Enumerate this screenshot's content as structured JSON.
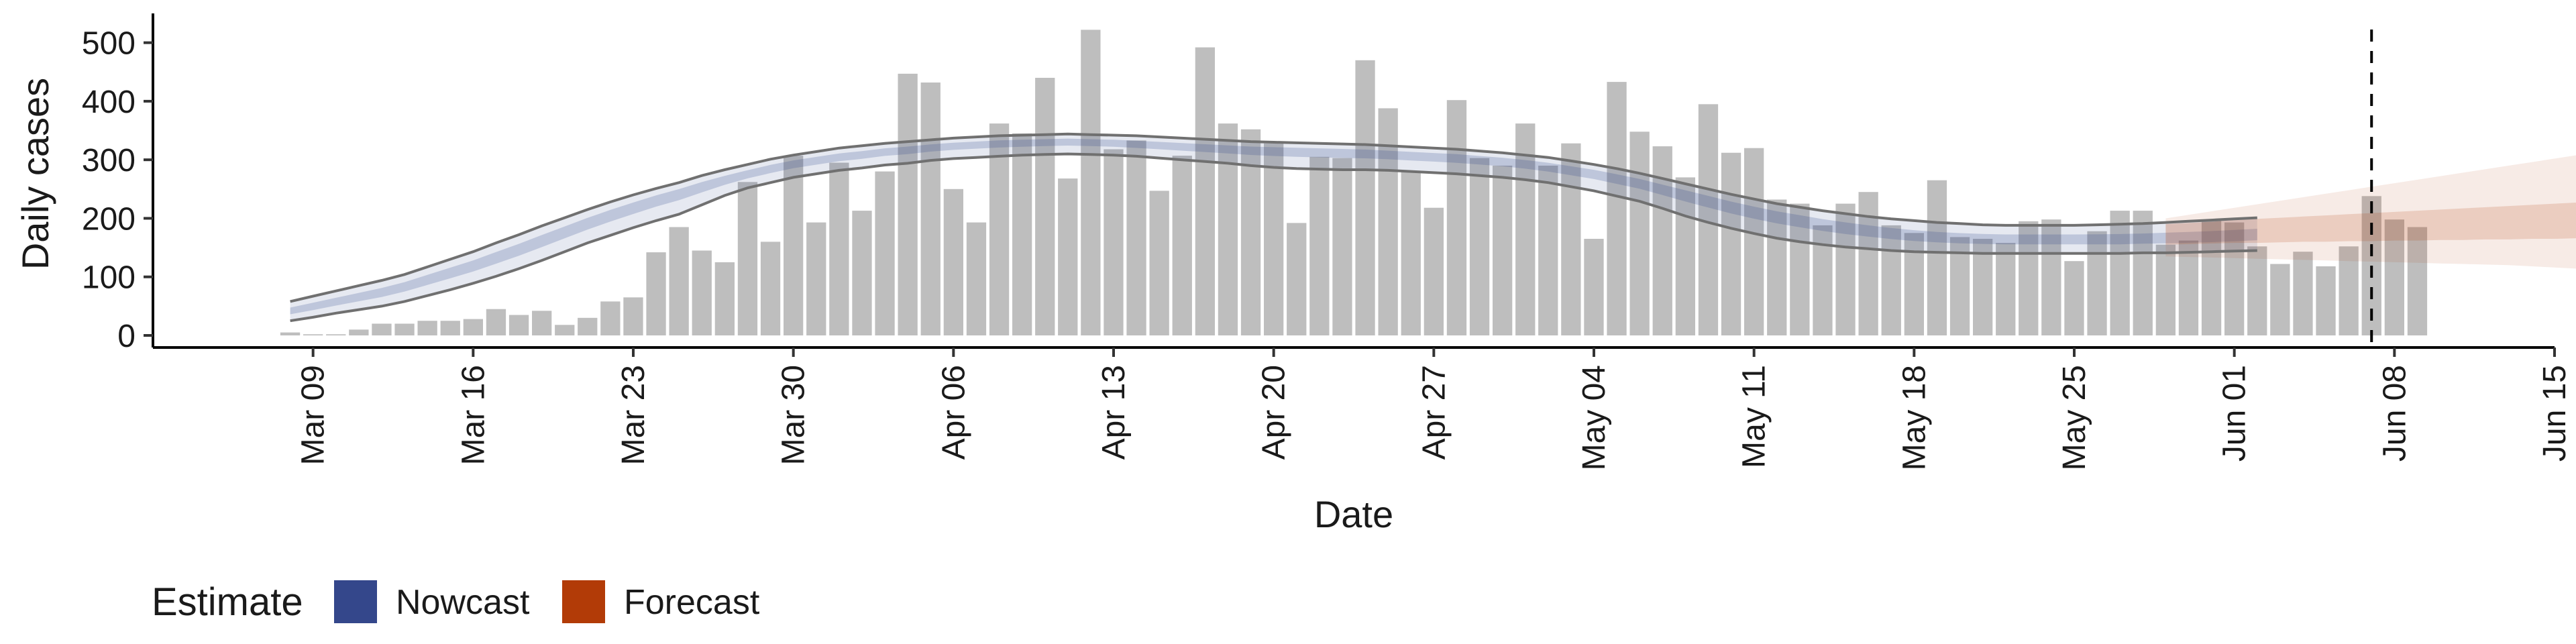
{
  "chart_data": {
    "type": "bar",
    "xlabel": "Date",
    "ylabel": "Daily cases",
    "ylim": [
      0,
      550
    ],
    "yticks": [
      0,
      100,
      200,
      300,
      400,
      500
    ],
    "xlim": [
      "2020-03-02",
      "2020-06-15"
    ],
    "xticks": [
      {
        "date": "2020-03-09",
        "label": "Mar 09"
      },
      {
        "date": "2020-03-16",
        "label": "Mar 16"
      },
      {
        "date": "2020-03-23",
        "label": "Mar 23"
      },
      {
        "date": "2020-03-30",
        "label": "Mar 30"
      },
      {
        "date": "2020-04-06",
        "label": "Apr 06"
      },
      {
        "date": "2020-04-13",
        "label": "Apr 13"
      },
      {
        "date": "2020-04-20",
        "label": "Apr 20"
      },
      {
        "date": "2020-04-27",
        "label": "Apr 27"
      },
      {
        "date": "2020-05-04",
        "label": "May 04"
      },
      {
        "date": "2020-05-11",
        "label": "May 11"
      },
      {
        "date": "2020-05-18",
        "label": "May 18"
      },
      {
        "date": "2020-05-25",
        "label": "May 25"
      },
      {
        "date": "2020-06-01",
        "label": "Jun 01"
      },
      {
        "date": "2020-06-08",
        "label": "Jun 08"
      },
      {
        "date": "2020-06-15",
        "label": "Jun 15"
      }
    ],
    "bars_start_date": "2020-03-08",
    "bar_values": [
      5,
      2,
      2,
      10,
      20,
      20,
      25,
      25,
      28,
      45,
      35,
      42,
      18,
      30,
      58,
      65,
      142,
      185,
      145,
      125,
      262,
      160,
      307,
      193,
      295,
      213,
      280,
      447,
      432,
      250,
      193,
      362,
      345,
      440,
      268,
      522,
      318,
      333,
      247,
      307,
      492,
      362,
      352,
      328,
      192,
      305,
      303,
      470,
      388,
      280,
      218,
      402,
      303,
      290,
      362,
      290,
      328,
      165,
      433,
      348,
      323,
      270,
      395,
      312,
      320,
      232,
      225,
      188,
      225,
      245,
      188,
      175,
      265,
      168,
      165,
      158,
      195,
      198,
      127,
      178,
      213,
      213,
      155,
      162,
      198,
      193,
      152,
      122,
      143,
      118,
      152,
      238,
      198,
      185
    ],
    "nowcast": {
      "start_date": "2020-03-08",
      "median": [
        42,
        50,
        58,
        66,
        74,
        84,
        96,
        108,
        120,
        134,
        148,
        163,
        178,
        193,
        207,
        220,
        233,
        244,
        256,
        267,
        277,
        286,
        294,
        300,
        306,
        310,
        315,
        318,
        322,
        325,
        327,
        329,
        330,
        331,
        332,
        331,
        330,
        328,
        326,
        324,
        322,
        320,
        318,
        317,
        316,
        315,
        314,
        313,
        311,
        309,
        307,
        305,
        302,
        299,
        295,
        290,
        284,
        278,
        270,
        262,
        252,
        242,
        232,
        222,
        213,
        205,
        198,
        191,
        185,
        180,
        175,
        171,
        168,
        166,
        165,
        164,
        164,
        164,
        164,
        164,
        164,
        165,
        166,
        167,
        168,
        170,
        172
      ],
      "lower_90": [
        25,
        31,
        38,
        44,
        50,
        58,
        68,
        78,
        89,
        101,
        114,
        128,
        143,
        158,
        171,
        184,
        196,
        207,
        223,
        239,
        252,
        261,
        270,
        276,
        282,
        286,
        291,
        294,
        299,
        302,
        304,
        306,
        308,
        309,
        310,
        309,
        308,
        306,
        303,
        300,
        297,
        294,
        290,
        287,
        285,
        284,
        283,
        283,
        282,
        280,
        278,
        276,
        273,
        270,
        266,
        261,
        254,
        247,
        238,
        229,
        217,
        204,
        193,
        183,
        174,
        166,
        160,
        155,
        151,
        148,
        145,
        143,
        142,
        141,
        140,
        140,
        140,
        140,
        140,
        140,
        140,
        141,
        141,
        142,
        143,
        144,
        145
      ],
      "upper_90": [
        58,
        67,
        76,
        85,
        94,
        104,
        117,
        130,
        143,
        158,
        172,
        187,
        201,
        215,
        228,
        240,
        251,
        261,
        273,
        283,
        292,
        301,
        308,
        314,
        320,
        324,
        328,
        331,
        334,
        337,
        339,
        341,
        342,
        343,
        344,
        343,
        342,
        341,
        339,
        337,
        335,
        333,
        331,
        330,
        329,
        328,
        327,
        326,
        324,
        322,
        320,
        318,
        315,
        312,
        308,
        304,
        298,
        292,
        285,
        277,
        268,
        259,
        250,
        241,
        233,
        225,
        219,
        213,
        208,
        203,
        199,
        196,
        193,
        191,
        189,
        188,
        188,
        188,
        188,
        189,
        190,
        191,
        193,
        195,
        197,
        199,
        201
      ]
    },
    "forecast": {
      "start_date": "2020-05-29",
      "median": [
        175,
        176,
        177,
        178,
        179,
        180,
        181,
        182,
        183,
        184,
        185,
        186,
        187,
        188,
        189,
        190,
        191,
        192,
        193,
        194,
        195,
        196
      ],
      "lower_50": [
        155,
        156,
        157,
        158,
        158,
        159,
        160,
        160,
        161,
        161,
        162,
        162,
        163,
        163,
        164,
        164,
        165,
        165,
        166,
        166,
        167,
        167
      ],
      "upper_50": [
        190,
        192,
        194,
        197,
        199,
        201,
        203,
        205,
        207,
        209,
        211,
        213,
        215,
        217,
        219,
        221,
        223,
        225,
        227,
        228,
        229,
        230
      ],
      "lower_90": [
        135,
        134,
        133,
        132,
        131,
        130,
        129,
        128,
        127,
        126,
        125,
        124,
        123,
        122,
        121,
        120,
        118,
        116,
        114,
        111,
        107,
        103
      ],
      "upper_90": [
        200,
        206,
        212,
        218,
        224,
        230,
        236,
        242,
        248,
        254,
        260,
        266,
        272,
        278,
        284,
        290,
        296,
        302,
        308,
        314,
        322,
        330
      ]
    },
    "vline_date": "2020-06-07",
    "legend": {
      "title": "Estimate",
      "placement": "bottom-left",
      "entries": [
        {
          "label": "Nowcast",
          "color": "#34478b"
        },
        {
          "label": "Forecast",
          "color": "#b23b07"
        }
      ]
    },
    "colors": {
      "bars": "#bebebe",
      "nowcast": "#34478b",
      "forecast": "#b23b07",
      "outline": "#707070"
    },
    "grid": false
  }
}
